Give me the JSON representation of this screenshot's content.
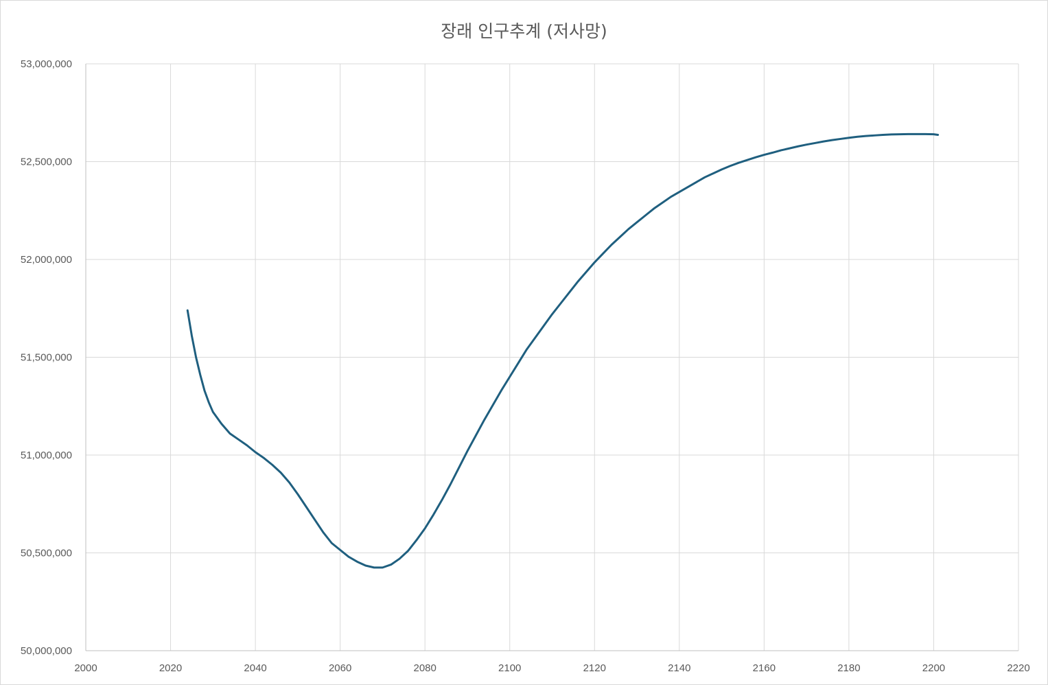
{
  "chart_data": {
    "type": "line",
    "title": "장래 인구추계 (저사망)",
    "xlabel": "",
    "ylabel": "",
    "xlim": [
      2000,
      2220
    ],
    "ylim": [
      50000000,
      53000000
    ],
    "x_ticks": [
      "2000",
      "2020",
      "2040",
      "2060",
      "2080",
      "2100",
      "2120",
      "2140",
      "2160",
      "2180",
      "2200",
      "2220"
    ],
    "y_ticks": [
      "50,000,000",
      "50,500,000",
      "51,000,000",
      "51,500,000",
      "52,000,000",
      "52,500,000",
      "53,000,000"
    ],
    "x_tick_values": [
      2000,
      2020,
      2040,
      2060,
      2080,
      2100,
      2120,
      2140,
      2160,
      2180,
      2200,
      2220
    ],
    "y_tick_values": [
      50000000,
      50500000,
      51000000,
      51500000,
      52000000,
      52500000,
      53000000
    ],
    "grid": true,
    "legend": "none",
    "line_color": "#1f5f7f",
    "series": [
      {
        "x": [
          2024,
          2025,
          2026,
          2027,
          2028,
          2029,
          2030,
          2032,
          2034,
          2036,
          2038,
          2040,
          2042,
          2044,
          2046,
          2048,
          2050,
          2052,
          2054,
          2056,
          2058,
          2060,
          2062,
          2064,
          2066,
          2068,
          2070,
          2072,
          2074,
          2076,
          2078,
          2080,
          2082,
          2084,
          2086,
          2088,
          2090,
          2092,
          2094,
          2096,
          2098,
          2100,
          2102,
          2104,
          2106,
          2108,
          2110,
          2112,
          2114,
          2116,
          2118,
          2120,
          2122,
          2124,
          2126,
          2128,
          2130,
          2132,
          2134,
          2136,
          2138,
          2140,
          2142,
          2144,
          2146,
          2148,
          2150,
          2152,
          2154,
          2156,
          2158,
          2160,
          2162,
          2164,
          2166,
          2168,
          2170,
          2172,
          2174,
          2176,
          2178,
          2180,
          2182,
          2184,
          2186,
          2188,
          2190,
          2192,
          2194,
          2196,
          2198,
          2200,
          2201
        ],
        "values": [
          51740000,
          51610000,
          51500000,
          51410000,
          51330000,
          51270000,
          51220000,
          51160000,
          51110000,
          51080000,
          51050000,
          51015000,
          50985000,
          50950000,
          50910000,
          50860000,
          50800000,
          50735000,
          50670000,
          50605000,
          50550000,
          50515000,
          50480000,
          50455000,
          50435000,
          50425000,
          50425000,
          50440000,
          50470000,
          50510000,
          50565000,
          50625000,
          50695000,
          50770000,
          50850000,
          50935000,
          51020000,
          51100000,
          51180000,
          51255000,
          51330000,
          51400000,
          51470000,
          51540000,
          51600000,
          51660000,
          51720000,
          51775000,
          51830000,
          51885000,
          51935000,
          51985000,
          52030000,
          52075000,
          52115000,
          52155000,
          52190000,
          52225000,
          52260000,
          52290000,
          52320000,
          52345000,
          52370000,
          52395000,
          52420000,
          52440000,
          52460000,
          52478000,
          52494000,
          52508000,
          52522000,
          52535000,
          52546000,
          52558000,
          52568000,
          52578000,
          52587000,
          52595000,
          52603000,
          52610000,
          52616000,
          52622000,
          52627000,
          52631000,
          52634000,
          52637000,
          52639000,
          52640000,
          52641000,
          52641000,
          52641000,
          52640000,
          52637000
        ]
      }
    ]
  }
}
